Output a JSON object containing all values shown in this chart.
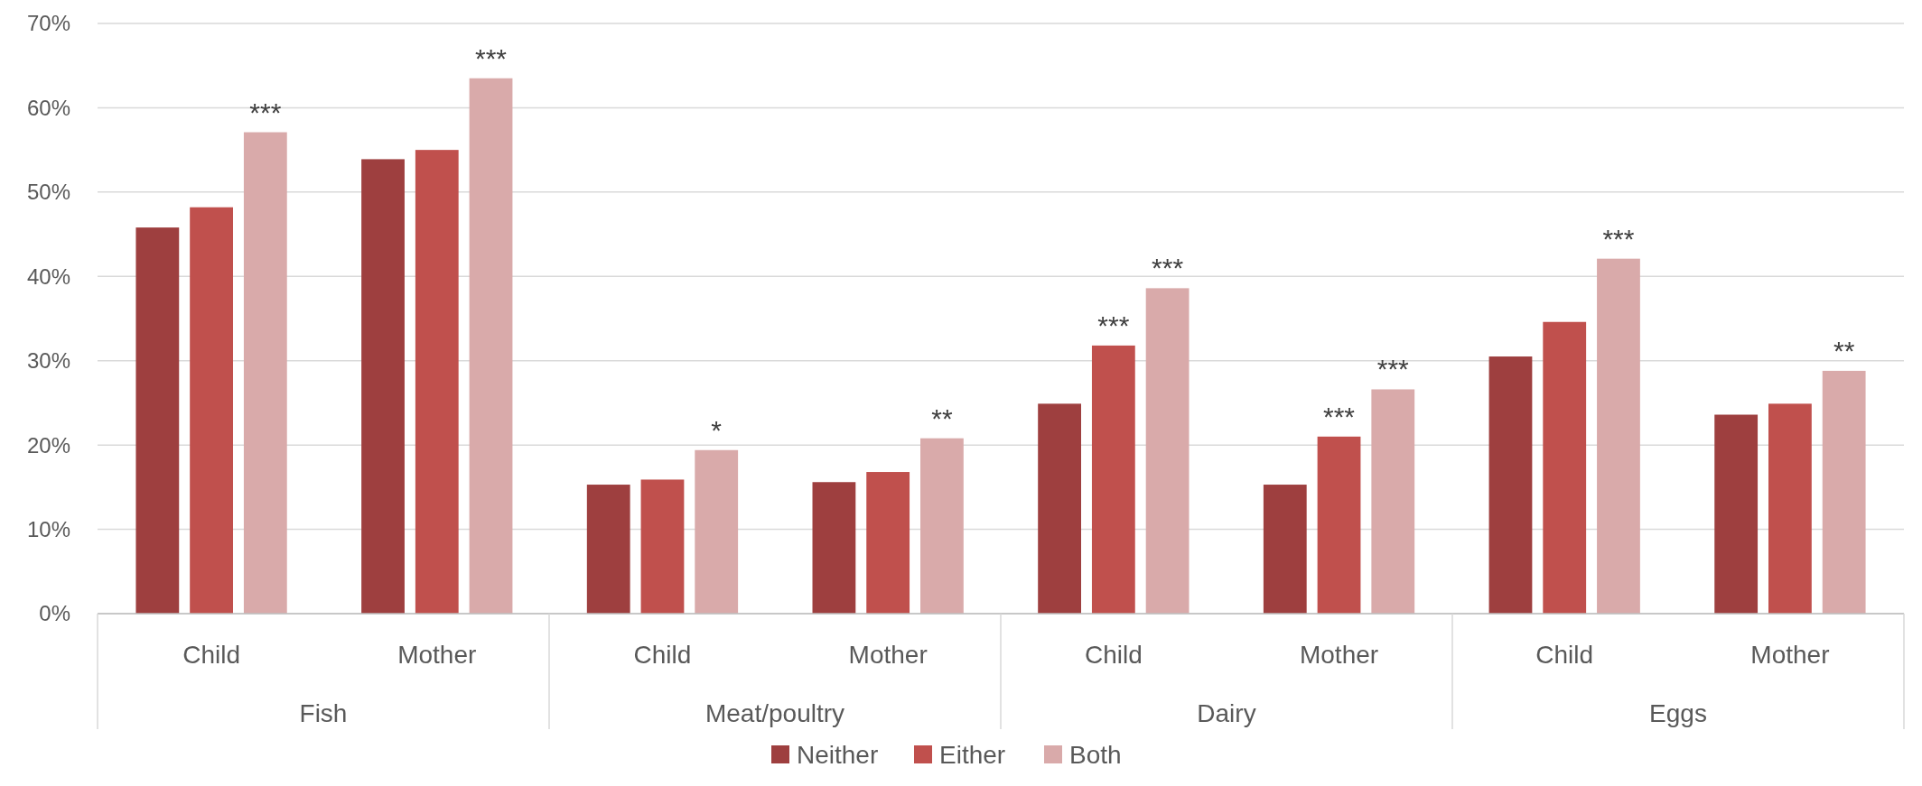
{
  "chart_data": {
    "type": "bar",
    "categories": [
      "Child",
      "Mother",
      "Child",
      "Mother",
      "Child",
      "Mother",
      "Child",
      "Mother"
    ],
    "series": [
      {
        "name": "Neither",
        "color": "#9e3f3f",
        "values": [
          45.8,
          53.9,
          15.3,
          15.6,
          24.9,
          15.3,
          30.5,
          23.6
        ],
        "value_labels": [
          null,
          null,
          null,
          null,
          null,
          null,
          null,
          null
        ]
      },
      {
        "name": "Either",
        "color": "#c0504d",
        "values": [
          48.2,
          55.0,
          15.9,
          16.8,
          31.8,
          21.0,
          34.6,
          24.9
        ],
        "value_labels": [
          null,
          null,
          null,
          null,
          "***",
          "***",
          null,
          null
        ]
      },
      {
        "name": "Both",
        "color": "#d9aaaa",
        "values": [
          57.1,
          63.5,
          19.4,
          20.8,
          38.6,
          26.6,
          42.1,
          28.8
        ],
        "value_labels": [
          "***",
          "***",
          "*",
          "**",
          "***",
          "***",
          "***",
          "**"
        ]
      }
    ],
    "annotations": [
      "Fish",
      "Meat/poultry",
      "Dairy",
      "Eggs"
    ],
    "ylim": [
      0,
      70
    ],
    "yticks": [
      {
        "value": 0,
        "label": "0%"
      },
      {
        "value": 10,
        "label": "10%"
      },
      {
        "value": 20,
        "label": "20%"
      },
      {
        "value": 30,
        "label": "30%"
      },
      {
        "value": 40,
        "label": "40%"
      },
      {
        "value": 50,
        "label": "50%"
      },
      {
        "value": 60,
        "label": "60%"
      },
      {
        "value": 70,
        "label": "70%"
      }
    ],
    "grid": "y",
    "legend": "bottom"
  }
}
